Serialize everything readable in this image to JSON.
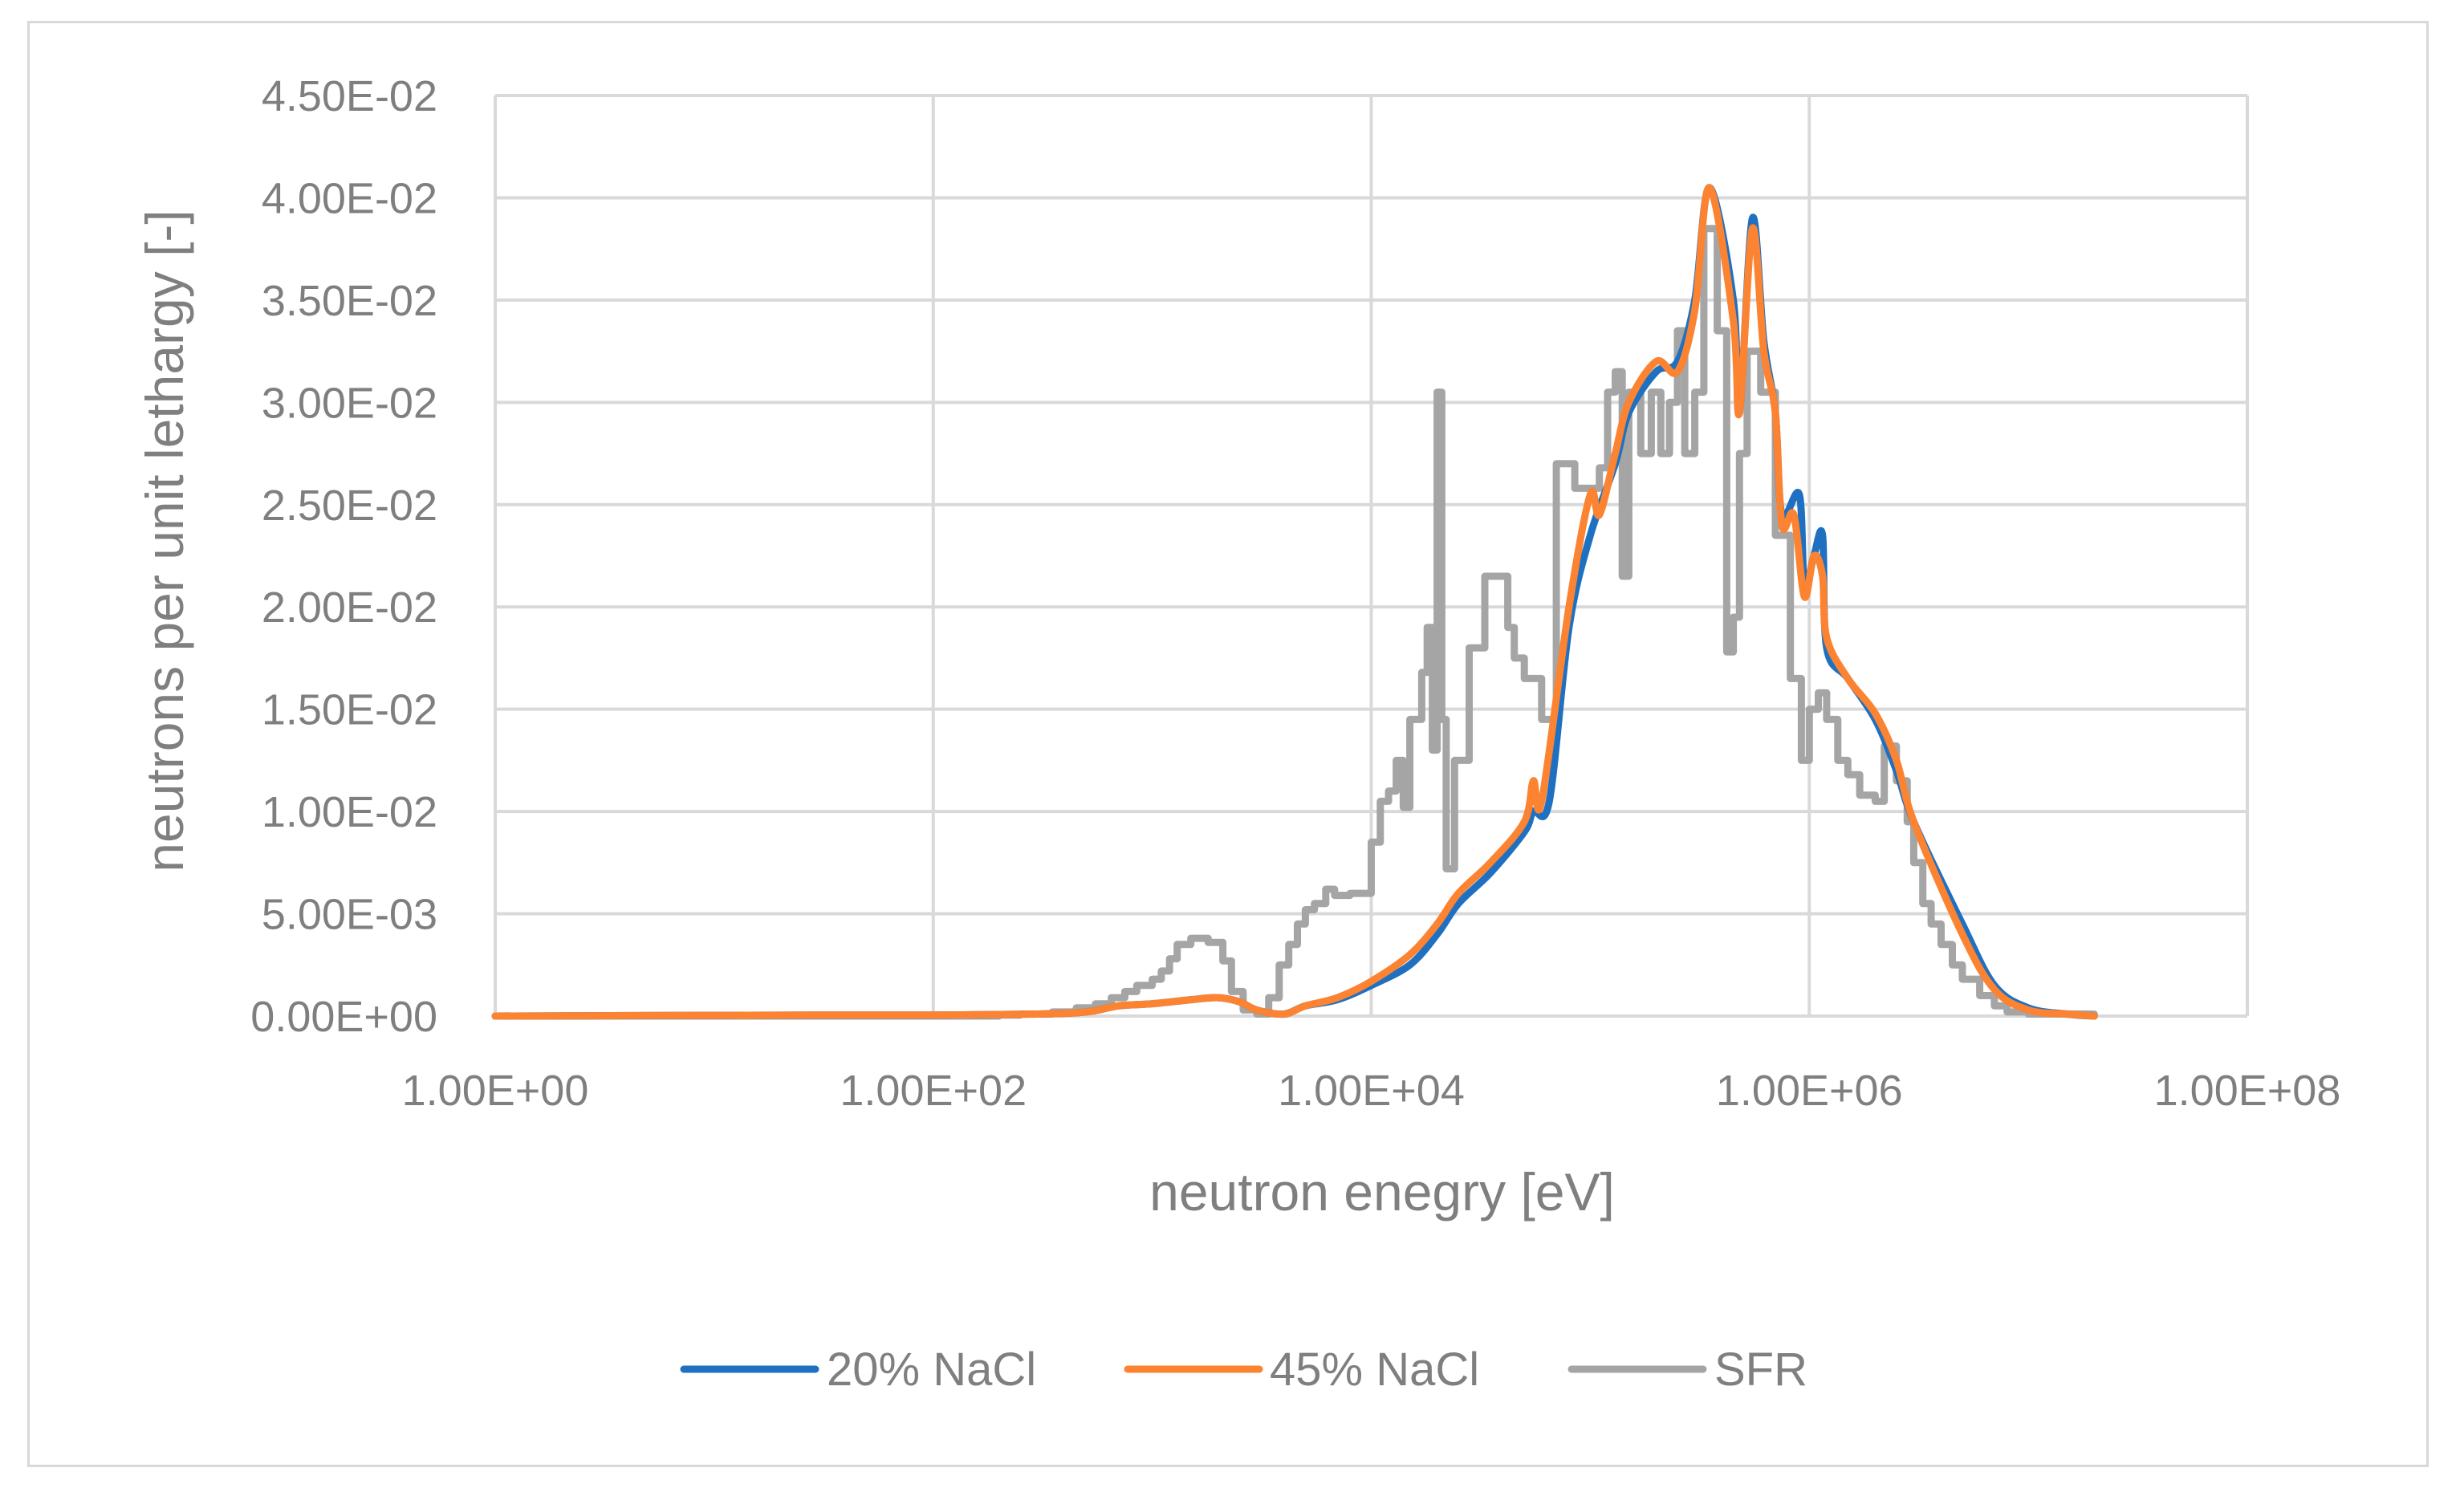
{
  "chart_data": {
    "type": "line",
    "title": "",
    "xlabel": "neutron enegry [eV]",
    "ylabel": "neutrons per unit lethargy [-]",
    "x_scale": "log",
    "xlim": [
      1,
      100000000
    ],
    "ylim": [
      0,
      0.045
    ],
    "x_ticks": [
      {
        "value": 1,
        "label": "1.00E+00"
      },
      {
        "value": 100,
        "label": "1.00E+02"
      },
      {
        "value": 10000,
        "label": "1.00E+04"
      },
      {
        "value": 1000000,
        "label": "1.00E+06"
      },
      {
        "value": 100000000,
        "label": "1.00E+08"
      }
    ],
    "y_ticks": [
      {
        "value": 0,
        "label": "0.00E+00"
      },
      {
        "value": 0.005,
        "label": "5.00E-03"
      },
      {
        "value": 0.01,
        "label": "1.00E-02"
      },
      {
        "value": 0.015,
        "label": "1.50E-02"
      },
      {
        "value": 0.02,
        "label": "2.00E-02"
      },
      {
        "value": 0.025,
        "label": "2.50E-02"
      },
      {
        "value": 0.03,
        "label": "3.00E-02"
      },
      {
        "value": 0.035,
        "label": "3.50E-02"
      },
      {
        "value": 0.04,
        "label": "4.00E-02"
      },
      {
        "value": 0.045,
        "label": "4.50E-02"
      }
    ],
    "grid": true,
    "legend_position": "bottom",
    "series": [
      {
        "name": "20% NaCl",
        "color": "#1f70c1",
        "style": "smooth",
        "points": [
          [
            1,
            0
          ],
          [
            30,
            5e-05
          ],
          [
            100,
            5e-05
          ],
          [
            300,
            0.0001
          ],
          [
            500,
            0.0002
          ],
          [
            700,
            0.0005
          ],
          [
            1000,
            0.0006
          ],
          [
            1500,
            0.0008
          ],
          [
            2000,
            0.0009
          ],
          [
            2500,
            0.0007
          ],
          [
            3000,
            0.0003
          ],
          [
            4000,
            0.0001
          ],
          [
            5000,
            0.0005
          ],
          [
            7000,
            0.0008
          ],
          [
            10000,
            0.0015
          ],
          [
            15000,
            0.0025
          ],
          [
            20000,
            0.004
          ],
          [
            25000,
            0.0055
          ],
          [
            35000,
            0.007
          ],
          [
            50000,
            0.009
          ],
          [
            55000,
            0.01
          ],
          [
            65000,
            0.0105
          ],
          [
            80000,
            0.019
          ],
          [
            100000,
            0.0235
          ],
          [
            130000,
            0.027
          ],
          [
            150000,
            0.0295
          ],
          [
            200000,
            0.0315
          ],
          [
            250000,
            0.032
          ],
          [
            300000,
            0.035
          ],
          [
            350000,
            0.0405
          ],
          [
            450000,
            0.035
          ],
          [
            480000,
            0.0295
          ],
          [
            550000,
            0.039
          ],
          [
            620000,
            0.033
          ],
          [
            700000,
            0.0295
          ],
          [
            750000,
            0.0245
          ],
          [
            900000,
            0.0255
          ],
          [
            950000,
            0.021
          ],
          [
            1050000,
            0.0225
          ],
          [
            1150000,
            0.0235
          ],
          [
            1200000,
            0.018
          ],
          [
            1500000,
            0.0165
          ],
          [
            2000000,
            0.0145
          ],
          [
            2500000,
            0.012
          ],
          [
            3000000,
            0.0095
          ],
          [
            5000000,
            0.0045
          ],
          [
            7000000,
            0.0015
          ],
          [
            10000000,
            0.0004
          ],
          [
            15000000,
            0.0001
          ],
          [
            20000000,
            0
          ]
        ]
      },
      {
        "name": "45% NaCl",
        "color": "#fb8331",
        "style": "smooth",
        "points": [
          [
            1,
            0
          ],
          [
            30,
            5e-05
          ],
          [
            100,
            5e-05
          ],
          [
            300,
            0.0001
          ],
          [
            500,
            0.0002
          ],
          [
            700,
            0.0005
          ],
          [
            1000,
            0.0006
          ],
          [
            1500,
            0.0008
          ],
          [
            2000,
            0.0009
          ],
          [
            2500,
            0.0007
          ],
          [
            3000,
            0.0003
          ],
          [
            4000,
            0.0001
          ],
          [
            5000,
            0.0005
          ],
          [
            7000,
            0.0009
          ],
          [
            10000,
            0.0017
          ],
          [
            15000,
            0.003
          ],
          [
            20000,
            0.0045
          ],
          [
            25000,
            0.006
          ],
          [
            35000,
            0.0075
          ],
          [
            50000,
            0.0095
          ],
          [
            55000,
            0.0115
          ],
          [
            60000,
            0.0105
          ],
          [
            80000,
            0.02
          ],
          [
            100000,
            0.0255
          ],
          [
            110000,
            0.0245
          ],
          [
            130000,
            0.0275
          ],
          [
            150000,
            0.03
          ],
          [
            200000,
            0.032
          ],
          [
            250000,
            0.0315
          ],
          [
            300000,
            0.0345
          ],
          [
            350000,
            0.0405
          ],
          [
            450000,
            0.034
          ],
          [
            480000,
            0.0295
          ],
          [
            550000,
            0.0385
          ],
          [
            620000,
            0.0325
          ],
          [
            700000,
            0.0295
          ],
          [
            750000,
            0.024
          ],
          [
            850000,
            0.0245
          ],
          [
            950000,
            0.0205
          ],
          [
            1050000,
            0.0225
          ],
          [
            1150000,
            0.0215
          ],
          [
            1200000,
            0.0185
          ],
          [
            1500000,
            0.0165
          ],
          [
            2000000,
            0.0148
          ],
          [
            2500000,
            0.0125
          ],
          [
            3000000,
            0.0095
          ],
          [
            5000000,
            0.004
          ],
          [
            7000000,
            0.0013
          ],
          [
            10000000,
            0.0003
          ],
          [
            15000000,
            0.0001
          ],
          [
            20000000,
            0
          ]
        ]
      },
      {
        "name": "SFR",
        "color": "#a5a5a5",
        "style": "step",
        "points": [
          [
            1,
            0
          ],
          [
            200,
            5e-05
          ],
          [
            250,
            0.0001
          ],
          [
            350,
            0.0002
          ],
          [
            450,
            0.0004
          ],
          [
            550,
            0.0006
          ],
          [
            650,
            0.0009
          ],
          [
            750,
            0.0012
          ],
          [
            850,
            0.0015
          ],
          [
            1000,
            0.0018
          ],
          [
            1100,
            0.0022
          ],
          [
            1200,
            0.0028
          ],
          [
            1300,
            0.0035
          ],
          [
            1500,
            0.0038
          ],
          [
            1800,
            0.0036
          ],
          [
            2100,
            0.0027
          ],
          [
            2300,
            0.0012
          ],
          [
            2600,
            0.0003
          ],
          [
            3000,
            0.0001
          ],
          [
            3400,
            0.0009
          ],
          [
            3800,
            0.0025
          ],
          [
            4200,
            0.0035
          ],
          [
            4600,
            0.0045
          ],
          [
            5000,
            0.0052
          ],
          [
            5500,
            0.0055
          ],
          [
            6200,
            0.0062
          ],
          [
            6800,
            0.0059
          ],
          [
            8000,
            0.006
          ],
          [
            9000,
            0.006
          ],
          [
            10000,
            0.0085
          ],
          [
            11000,
            0.0105
          ],
          [
            12000,
            0.011
          ],
          [
            13000,
            0.0125
          ],
          [
            14000,
            0.0102
          ],
          [
            15000,
            0.0145
          ],
          [
            17000,
            0.0168
          ],
          [
            18000,
            0.019
          ],
          [
            19000,
            0.013
          ],
          [
            20000,
            0.0305
          ],
          [
            21000,
            0.0145
          ],
          [
            22000,
            0.0072
          ],
          [
            24000,
            0.0125
          ],
          [
            28000,
            0.018
          ],
          [
            33000,
            0.0215
          ],
          [
            38000,
            0.0215
          ],
          [
            42000,
            0.019
          ],
          [
            45000,
            0.0175
          ],
          [
            50000,
            0.0165
          ],
          [
            55000,
            0.0165
          ],
          [
            60000,
            0.0145
          ],
          [
            70000,
            0.027
          ],
          [
            85000,
            0.0258
          ],
          [
            95000,
            0.0258
          ],
          [
            110000,
            0.0268
          ],
          [
            120000,
            0.0305
          ],
          [
            130000,
            0.0315
          ],
          [
            140000,
            0.0215
          ],
          [
            150000,
            0.0305
          ],
          [
            170000,
            0.0275
          ],
          [
            190000,
            0.0305
          ],
          [
            210000,
            0.0275
          ],
          [
            230000,
            0.03
          ],
          [
            250000,
            0.0335
          ],
          [
            270000,
            0.0275
          ],
          [
            300000,
            0.0305
          ],
          [
            330000,
            0.0385
          ],
          [
            380000,
            0.0335
          ],
          [
            420000,
            0.0178
          ],
          [
            450000,
            0.0195
          ],
          [
            480000,
            0.0275
          ],
          [
            520000,
            0.0325
          ],
          [
            550000,
            0.0325
          ],
          [
            600000,
            0.0305
          ],
          [
            700000,
            0.0235
          ],
          [
            750000,
            0.0235
          ],
          [
            820000,
            0.0165
          ],
          [
            920000,
            0.0125
          ],
          [
            1000000,
            0.015
          ],
          [
            1100000,
            0.0158
          ],
          [
            1200000,
            0.0145
          ],
          [
            1350000,
            0.0125
          ],
          [
            1500000,
            0.0118
          ],
          [
            1700000,
            0.0108
          ],
          [
            2000000,
            0.0105
          ],
          [
            2200000,
            0.0132
          ],
          [
            2500000,
            0.0115
          ],
          [
            2800000,
            0.0095
          ],
          [
            3000000,
            0.0075
          ],
          [
            3300000,
            0.0055
          ],
          [
            3600000,
            0.0045
          ],
          [
            4000000,
            0.0035
          ],
          [
            4500000,
            0.0025
          ],
          [
            5000000,
            0.0018
          ],
          [
            6000000,
            0.001
          ],
          [
            7000000,
            0.0005
          ],
          [
            8000000,
            0.0002
          ],
          [
            10000000,
            0.0001
          ],
          [
            20000000,
            0
          ]
        ]
      }
    ]
  }
}
